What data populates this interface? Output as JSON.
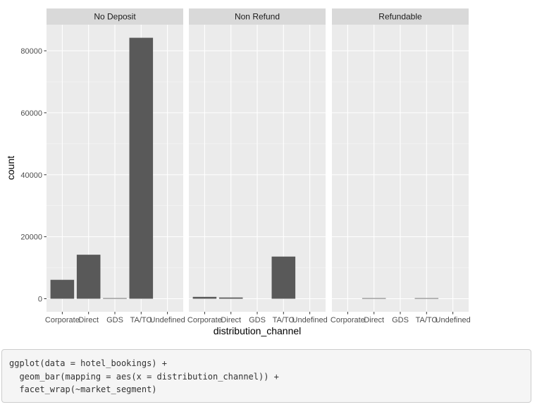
{
  "chart_data": {
    "type": "bar",
    "facet_by": "market_segment",
    "xlabel": "distribution_channel",
    "ylabel": "count",
    "categories": [
      "Corporate",
      "Direct",
      "GDS",
      "TA/TO",
      "Undefined"
    ],
    "y_ticks": [
      0,
      20000,
      40000,
      60000,
      80000
    ],
    "y_tick_labels": [
      "0",
      "20000",
      "40000",
      "60000",
      "80000"
    ],
    "ylim": [
      0,
      88000
    ],
    "grid": true,
    "panel_background": "#ebebeb",
    "strip_background": "#d9d9d9",
    "bar_color": "#595959",
    "facets": [
      {
        "name": "No Deposit",
        "values": [
          6100,
          14200,
          190,
          84200,
          0
        ]
      },
      {
        "name": "Non Refund",
        "values": [
          600,
          400,
          0,
          13600,
          0
        ]
      },
      {
        "name": "Refundable",
        "values": [
          0,
          110,
          0,
          60,
          0
        ]
      }
    ]
  },
  "code": {
    "lines": [
      "ggplot(data = hotel_bookings) +",
      "  geom_bar(mapping = aes(x = distribution_channel)) +",
      "  facet_wrap(~market_segment)"
    ]
  }
}
